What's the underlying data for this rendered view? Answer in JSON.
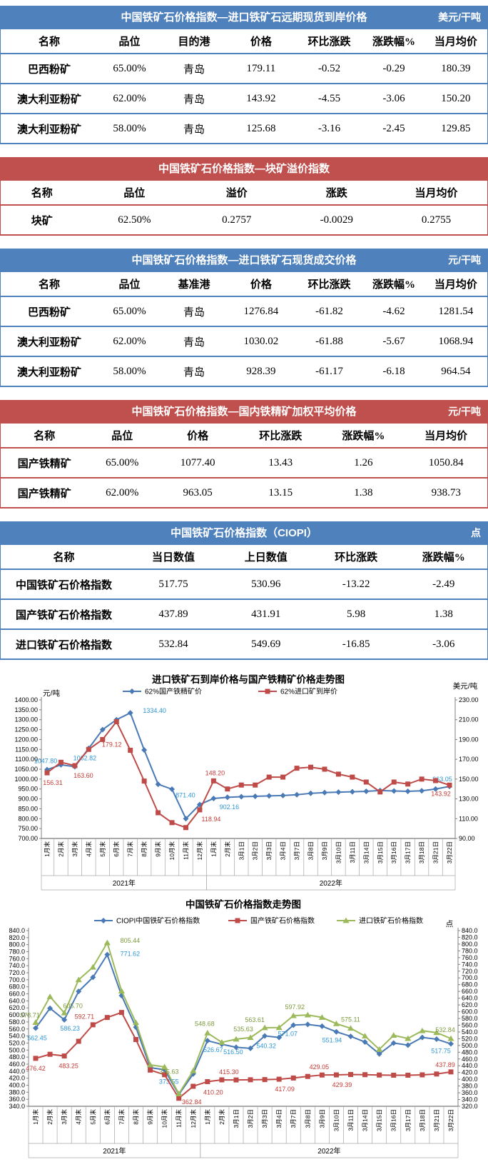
{
  "tables": [
    {
      "accent": "#4f81bd",
      "title": "中国铁矿石价格指数—进口铁矿石远期现货到岸价格",
      "unit": "美元/干吨",
      "headers": [
        "名称",
        "品位",
        "目的港",
        "价格",
        "环比涨跌",
        "涨跌幅%",
        "当月均价"
      ],
      "widths": [
        20,
        13,
        13.5,
        14,
        14,
        12.5,
        13
      ],
      "rows": [
        [
          "巴西粉矿",
          "65.00%",
          "青岛",
          "179.11",
          "-0.52",
          "-0.29",
          "180.39"
        ],
        [
          "澳大利亚粉矿",
          "62.00%",
          "青岛",
          "143.92",
          "-4.55",
          "-3.06",
          "150.20"
        ],
        [
          "澳大利亚粉矿",
          "58.00%",
          "青岛",
          "125.68",
          "-3.16",
          "-2.45",
          "129.85"
        ]
      ]
    },
    {
      "accent": "#c0504d",
      "title": "中国铁矿石价格指数—块矿溢价指数",
      "unit": "",
      "headers": [
        "名称",
        "品位",
        "溢价",
        "涨跌",
        "当月均价"
      ],
      "widths": [
        17,
        21,
        21,
        20,
        21
      ],
      "rows": [
        [
          "块矿",
          "62.50%",
          "0.2757",
          "-0.0029",
          "0.2755"
        ]
      ]
    },
    {
      "accent": "#4f81bd",
      "title": "中国铁矿石价格指数—进口铁矿石现货成交价格",
      "unit": "元/干吨",
      "headers": [
        "名称",
        "品位",
        "基准港",
        "价格",
        "环比涨跌",
        "涨跌幅%",
        "当月均价"
      ],
      "widths": [
        20,
        13,
        13.5,
        14,
        14,
        12.5,
        13
      ],
      "rows": [
        [
          "巴西粉矿",
          "65.00%",
          "青岛",
          "1276.84",
          "-61.82",
          "-4.62",
          "1281.54"
        ],
        [
          "澳大利亚粉矿",
          "62.00%",
          "青岛",
          "1030.02",
          "-61.88",
          "-5.67",
          "1068.94"
        ],
        [
          "澳大利亚粉矿",
          "58.00%",
          "青岛",
          "928.39",
          "-61.17",
          "-6.18",
          "964.54"
        ]
      ]
    },
    {
      "accent": "#c0504d",
      "title": "中国铁矿石价格指数—国内铁精矿加权平均价格",
      "unit": "元/干吨",
      "headers": [
        "名称",
        "品位",
        "价格",
        "环比涨跌",
        "涨跌幅%",
        "当月均价"
      ],
      "widths": [
        18,
        14,
        17,
        17,
        17,
        17
      ],
      "rows": [
        [
          "国产铁精矿",
          "65.00%",
          "1077.40",
          "13.43",
          "1.26",
          "1050.84"
        ],
        [
          "国产铁精矿",
          "62.00%",
          "963.05",
          "13.15",
          "1.38",
          "938.73"
        ]
      ]
    },
    {
      "accent": "#4f81bd",
      "title": "中国铁矿石价格指数（CIOPI）",
      "unit": "点",
      "headers": [
        "名称",
        "当日数值",
        "上日数值",
        "环比涨跌",
        "涨跌幅%"
      ],
      "widths": [
        26,
        19,
        19,
        18,
        18
      ],
      "rows": [
        [
          "中国铁矿石价格指数",
          "517.75",
          "530.96",
          "-13.22",
          "-2.49"
        ],
        [
          "国产铁矿石价格指数",
          "437.89",
          "431.91",
          "5.98",
          "1.38"
        ],
        [
          "进口铁矿石价格指数",
          "532.84",
          "549.69",
          "-16.85",
          "-3.06"
        ]
      ]
    }
  ],
  "chart_data": [
    {
      "type": "line",
      "title": "进口铁矿石到岸价格与国产铁精矿价格走势图",
      "left_axis": {
        "unit": "元/吨",
        "min": 700,
        "max": 1400,
        "step": 50,
        "decimals": 2
      },
      "right_axis": {
        "unit": "美元/吨",
        "min": 90,
        "max": 230,
        "step": 20,
        "decimals": 2
      },
      "grid": false,
      "legend_position": "top",
      "categories": [
        "1月末",
        "2月末",
        "3月末",
        "4月末",
        "5月末",
        "6月末",
        "7月末",
        "8月末",
        "9月末",
        "10月末",
        "11月末",
        "12月末",
        "1月末",
        "2月末",
        "3月1日",
        "3月2日",
        "3月3日",
        "3月4日",
        "3月7日",
        "3月8日",
        "3月9日",
        "3月10日",
        "3月11日",
        "3月14日",
        "3月15日",
        "3月16日",
        "3月17日",
        "3月18日",
        "3月21日",
        "3月22日"
      ],
      "year_groups": [
        {
          "label": "2021年",
          "from": 0,
          "to": 11
        },
        {
          "label": "2022年",
          "from": 12,
          "to": 29
        }
      ],
      "series": [
        {
          "name": "62%国产铁精矿价",
          "axis": "left",
          "marker": "diamond",
          "color": "#4a7ab5",
          "label_color": "#2f96d5",
          "values": [
            1047.8,
            1072,
            1062.82,
            1155,
            1250,
            1300,
            1334.4,
            1147,
            974,
            949,
            800,
            871.4,
            902.16,
            908,
            911,
            913,
            915,
            917,
            921,
            928,
            932,
            934,
            936,
            938,
            942,
            940,
            938,
            941,
            949.9,
            963.05
          ],
          "point_labels": [
            {
              "i": 0,
              "text": "1047.80",
              "dx": -2,
              "dy": -9
            },
            {
              "i": 2,
              "text": "1062.82",
              "dx": 14,
              "dy": -9
            },
            {
              "i": 6,
              "text": "1334.40",
              "dx": 34,
              "dy": 0
            },
            {
              "i": 11,
              "text": "871.40",
              "dx": -20,
              "dy": -10
            },
            {
              "i": 12,
              "text": "902.16",
              "dx": 22,
              "dy": 15
            },
            {
              "i": 29,
              "text": "963.05",
              "dx": -10,
              "dy": -7
            }
          ]
        },
        {
          "name": "62%进口矿到岸价",
          "axis": "right",
          "marker": "square",
          "color": "#be4b48",
          "label_color": "#c43b36",
          "values": [
            156.31,
            167,
            163.6,
            180,
            190,
            208,
            179.12,
            148,
            116,
            106,
            101,
            118.94,
            148.2,
            140,
            144,
            144,
            152,
            152,
            161,
            162,
            160,
            155,
            152,
            147,
            137,
            147,
            145,
            150,
            148.47,
            143.92
          ],
          "point_labels": [
            {
              "i": 0,
              "text": "156.31",
              "dx": 8,
              "dy": 17
            },
            {
              "i": 2,
              "text": "163.60",
              "dx": 12,
              "dy": 17
            },
            {
              "i": 6,
              "text": "179.12",
              "dx": -26,
              "dy": -5
            },
            {
              "i": 11,
              "text": "118.94",
              "dx": 16,
              "dy": 16
            },
            {
              "i": 12,
              "text": "148.20",
              "dx": 2,
              "dy": -8
            },
            {
              "i": 29,
              "text": "143.92",
              "dx": -12,
              "dy": 15
            }
          ]
        }
      ]
    },
    {
      "type": "line",
      "title": "中国铁矿石价格指数走势图",
      "left_axis": {
        "unit": "",
        "min": 340,
        "max": 840,
        "step": 20,
        "decimals": 1
      },
      "right_axis": {
        "unit": "点",
        "min": 320,
        "max": 840,
        "step": 20,
        "decimals": 1
      },
      "grid": false,
      "legend_position": "top",
      "categories": [
        "1月末",
        "2月末",
        "3月末",
        "4月末",
        "5月末",
        "6月末",
        "7月末",
        "8月末",
        "9月末",
        "10月末",
        "11月末",
        "12月末",
        "1月末",
        "2月末",
        "3月1日",
        "3月2日",
        "3月3日",
        "3月4日",
        "3月7日",
        "3月8日",
        "3月9日",
        "3月10日",
        "3月11日",
        "3月14日",
        "3月15日",
        "3月16日",
        "3月17日",
        "3月18日",
        "3月21日",
        "3月22日"
      ],
      "year_groups": [
        {
          "label": "2021年",
          "from": 0,
          "to": 11
        },
        {
          "label": "2022年",
          "from": 12,
          "to": 29
        }
      ],
      "series": [
        {
          "name": "CIOPI中国铁矿石价格指数",
          "axis": "left",
          "marker": "diamond",
          "color": "#4a7ab5",
          "label_color": "#2f96d5",
          "values": [
            562.45,
            619,
            586.23,
            667,
            707,
            771.62,
            655,
            565,
            450,
            444,
            373.55,
            432,
            526.67,
            516.5,
            508,
            505,
            540.32,
            536,
            571.07,
            573,
            568,
            551.94,
            539,
            523,
            489,
            520,
            514,
            536,
            530.96,
            517.75
          ],
          "point_labels": [
            {
              "i": 0,
              "text": "562.45",
              "dx": 2,
              "dy": 17
            },
            {
              "i": 2,
              "text": "586.23",
              "dx": 8,
              "dy": 15
            },
            {
              "i": 5,
              "text": "771.62",
              "dx": 32,
              "dy": 2
            },
            {
              "i": 10,
              "text": "373.55",
              "dx": -14,
              "dy": -15
            },
            {
              "i": 12,
              "text": "526.67",
              "dx": 8,
              "dy": 16
            },
            {
              "i": 13,
              "text": "516.50",
              "dx": 16,
              "dy": 14
            },
            {
              "i": 16,
              "text": "540.32",
              "dx": 2,
              "dy": 17
            },
            {
              "i": 18,
              "text": "571.07",
              "dx": -8,
              "dy": 15
            },
            {
              "i": 21,
              "text": "551.94",
              "dx": -6,
              "dy": 15
            },
            {
              "i": 29,
              "text": "517.75",
              "dx": -14,
              "dy": 13
            }
          ]
        },
        {
          "name": "国产铁矿石价格指数",
          "axis": "left",
          "marker": "square",
          "color": "#be4b48",
          "label_color": "#c43b36",
          "values": [
            476.42,
            488,
            483.25,
            525,
            572,
            592.71,
            607,
            530,
            443,
            430,
            362.84,
            397,
            410.2,
            415.3,
            415,
            415.5,
            416,
            417.09,
            420.5,
            425,
            429.05,
            429.39,
            430.5,
            430,
            429,
            428.5,
            428.5,
            429.5,
            431.91,
            437.89
          ],
          "point_labels": [
            {
              "i": 0,
              "text": "476.42",
              "dx": 0,
              "dy": 17
            },
            {
              "i": 2,
              "text": "483.25",
              "dx": 6,
              "dy": 17
            },
            {
              "i": 5,
              "text": "592.71",
              "dx": -32,
              "dy": 2
            },
            {
              "i": 10,
              "text": "362.84",
              "dx": 18,
              "dy": 8
            },
            {
              "i": 12,
              "text": "410.20",
              "dx": 8,
              "dy": 18
            },
            {
              "i": 13,
              "text": "415.30",
              "dx": 10,
              "dy": -8
            },
            {
              "i": 17,
              "text": "417.09",
              "dx": 8,
              "dy": 17
            },
            {
              "i": 20,
              "text": "429.05",
              "dx": -4,
              "dy": -8
            },
            {
              "i": 21,
              "text": "429.39",
              "dx": 8,
              "dy": 17
            },
            {
              "i": 29,
              "text": "437.89",
              "dx": -8,
              "dy": -7
            }
          ]
        },
        {
          "name": "进口铁矿石价格指数",
          "axis": "left",
          "marker": "triangle",
          "color": "#9cba5c",
          "label_color": "#7d9a3f",
          "values": [
            578.71,
            652,
            605.7,
            700,
            736,
            805.44,
            668,
            578,
            458,
            452,
            375.63,
            441,
            548.68,
            522,
            531,
            535.63,
            563.61,
            564,
            597.92,
            600,
            593,
            575.11,
            562,
            540,
            502,
            542,
            533,
            555,
            549.69,
            532.84
          ],
          "point_labels": [
            {
              "i": 0,
              "text": "578.71",
              "dx": -8,
              "dy": -7
            },
            {
              "i": 2,
              "text": "605.70",
              "dx": 12,
              "dy": -7
            },
            {
              "i": 5,
              "text": "805.44",
              "dx": 32,
              "dy": 0
            },
            {
              "i": 10,
              "text": "375.63",
              "dx": -14,
              "dy": -28
            },
            {
              "i": 12,
              "text": "548.68",
              "dx": -4,
              "dy": -10
            },
            {
              "i": 15,
              "text": "535.63",
              "dx": -10,
              "dy": -9
            },
            {
              "i": 16,
              "text": "563.61",
              "dx": -14,
              "dy": -8
            },
            {
              "i": 18,
              "text": "597.92",
              "dx": 2,
              "dy": -9
            },
            {
              "i": 21,
              "text": "575.11",
              "dx": 20,
              "dy": -3
            },
            {
              "i": 29,
              "text": "532.84",
              "dx": -8,
              "dy": -9
            }
          ]
        }
      ]
    }
  ]
}
